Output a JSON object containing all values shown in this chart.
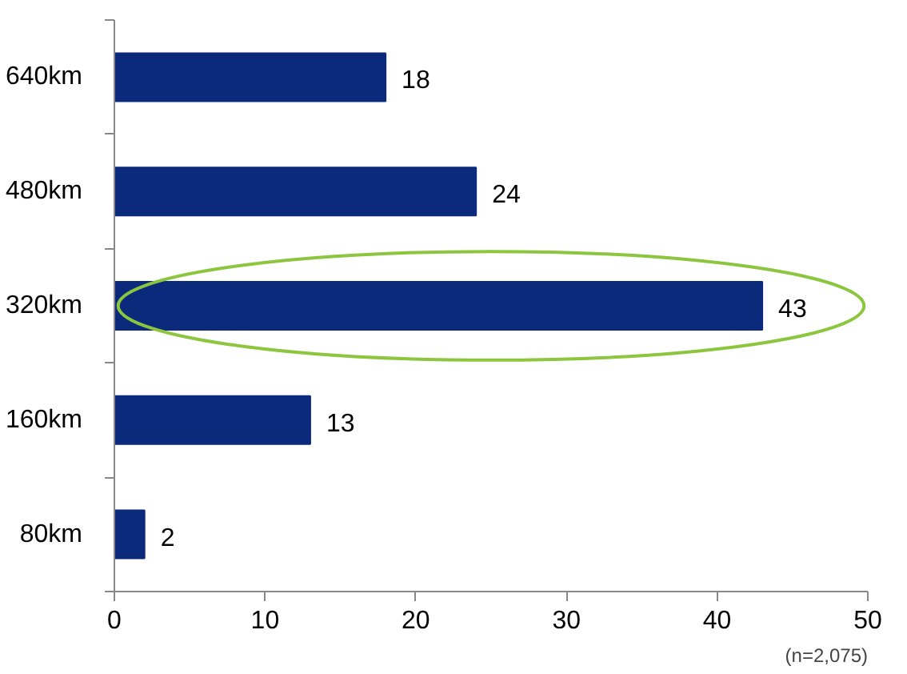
{
  "chart_data": {
    "type": "bar",
    "orientation": "horizontal",
    "categories": [
      "640km",
      "480km",
      "320km",
      "160km",
      "80km"
    ],
    "values": [
      18,
      24,
      43,
      13,
      2
    ],
    "color": "#0b2a7c",
    "xlim": [
      0,
      50
    ],
    "xticks": [
      0,
      10,
      20,
      30,
      40,
      50
    ],
    "data_labels": true,
    "grid": false,
    "annotations": [
      "(n=2,075)"
    ]
  }
}
